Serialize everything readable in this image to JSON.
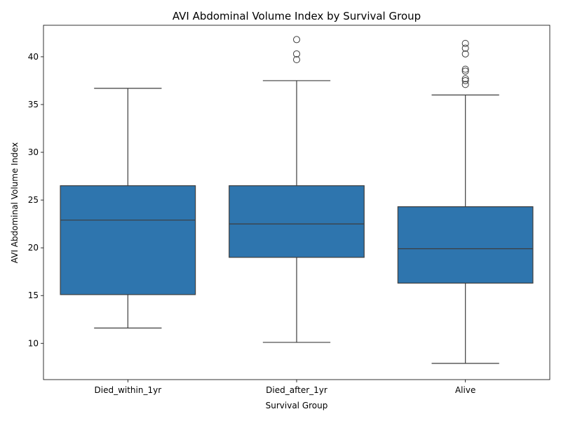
{
  "chart_data": {
    "type": "box",
    "title": "AVI Abdominal Volume Index by Survival Group",
    "xlabel": "Survival Group",
    "ylabel": "AVI Abdominal Volume Index",
    "ylim": [
      6.2,
      43.3
    ],
    "yticks": [
      10,
      15,
      20,
      25,
      30,
      35,
      40
    ],
    "categories": [
      "Died_within_1yr",
      "Died_after_1yr",
      "Alive"
    ],
    "boxes": [
      {
        "category": "Died_within_1yr",
        "whisker_low": 11.6,
        "q1": 15.1,
        "median": 22.9,
        "q3": 26.5,
        "whisker_high": 36.7,
        "outliers": []
      },
      {
        "category": "Died_after_1yr",
        "whisker_low": 10.1,
        "q1": 19.0,
        "median": 22.5,
        "q3": 26.5,
        "whisker_high": 37.5,
        "outliers": [
          39.7,
          40.3,
          41.8
        ]
      },
      {
        "category": "Alive",
        "whisker_low": 7.9,
        "q1": 16.3,
        "median": 19.9,
        "q3": 24.3,
        "whisker_high": 36.0,
        "outliers": [
          37.1,
          37.5,
          37.7,
          38.5,
          38.7,
          40.3,
          40.9,
          41.4
        ]
      }
    ],
    "box_color": "#2e75ae",
    "line_color": "#3d3d3d",
    "grid": false,
    "legend": "none"
  }
}
